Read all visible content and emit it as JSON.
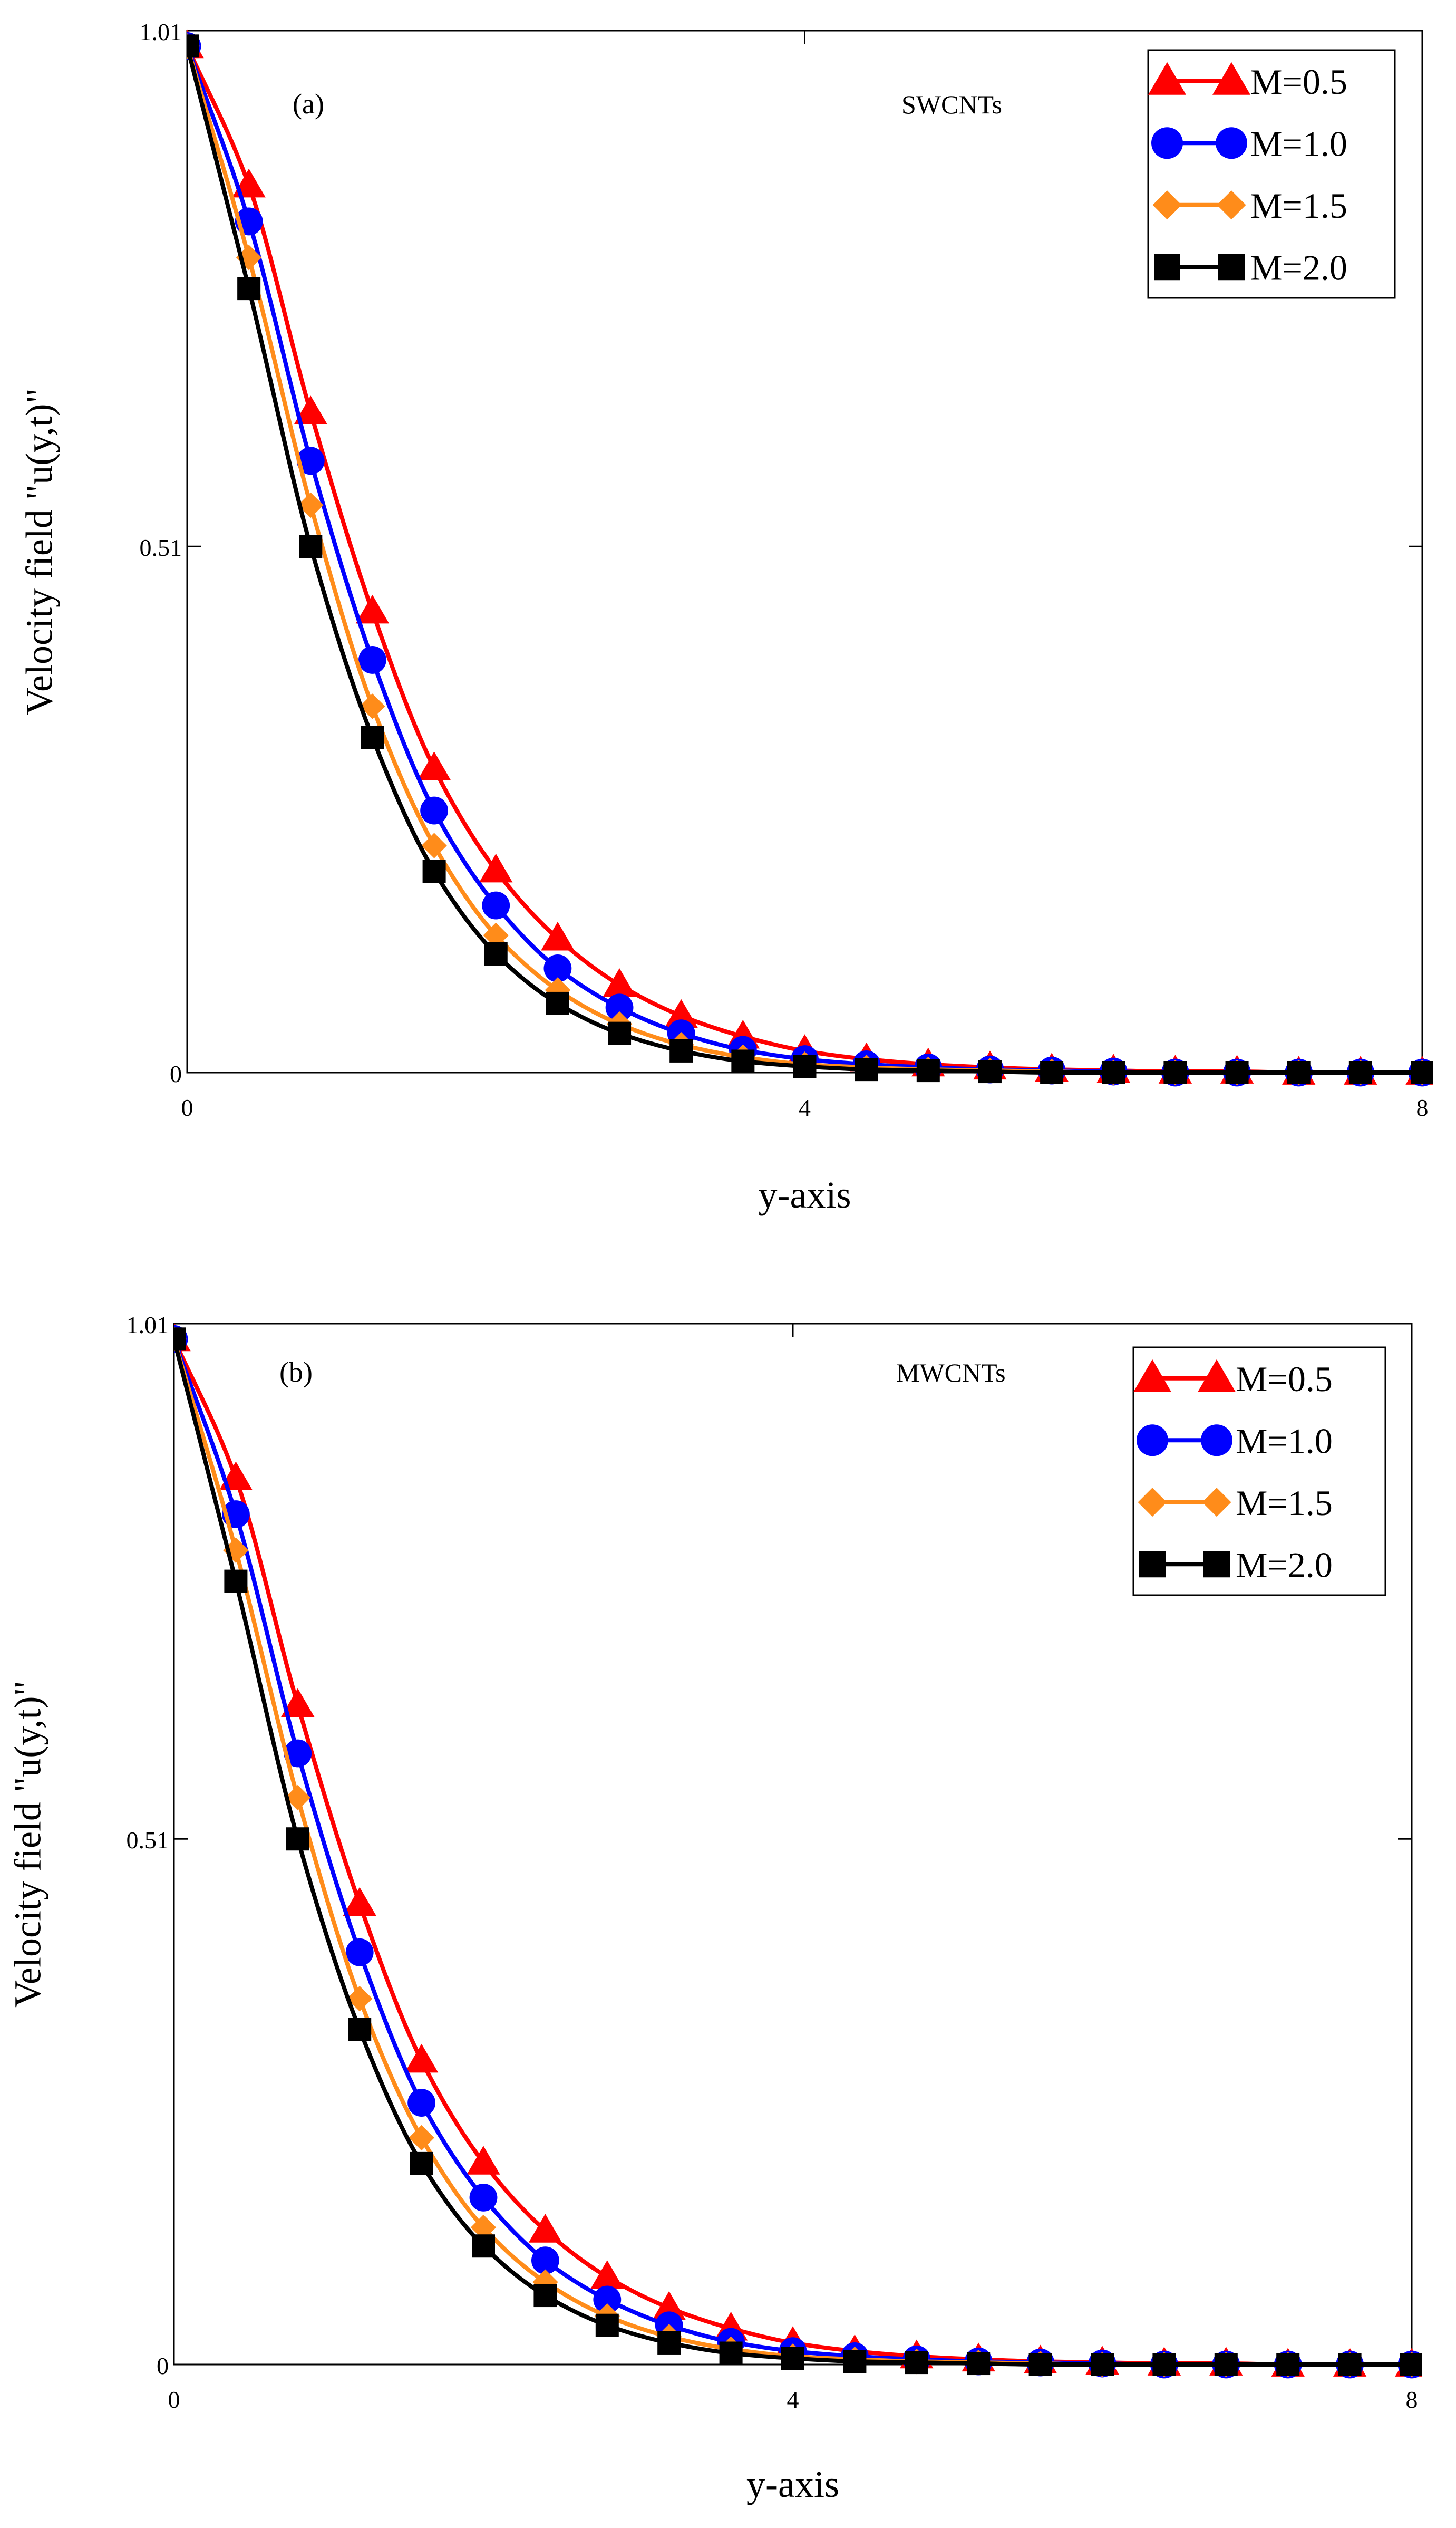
{
  "chart_data": [
    {
      "type": "line",
      "panel_label": "(a)",
      "annotation": "SWCNTs",
      "xlabel": "y-axis",
      "ylabel": "Velocity field \"u(y,t)\"",
      "xlim": [
        0,
        8
      ],
      "ylim": [
        0,
        1.01
      ],
      "x_ticks": [
        0,
        4,
        8
      ],
      "x_tick_labels": [
        "0",
        "4",
        "8"
      ],
      "y_ticks": [
        0,
        0.51,
        1.01
      ],
      "y_tick_labels": [
        "0",
        "0.51",
        "1.01"
      ],
      "grid": false,
      "legend_position": "top-right",
      "x": [
        0,
        0.4,
        0.8,
        1.2,
        1.6,
        2.0,
        2.4,
        2.8,
        3.2,
        3.6,
        4.0,
        4.4,
        4.8,
        5.2,
        5.6,
        6.0,
        6.4,
        6.8,
        7.2,
        7.6,
        8.0
      ],
      "series": [
        {
          "name": "M=0.5",
          "color": "#ff0000",
          "marker": "triangle",
          "values": [
            0.995,
            0.86,
            0.64,
            0.447,
            0.295,
            0.196,
            0.13,
            0.085,
            0.055,
            0.035,
            0.021,
            0.013,
            0.008,
            0.005,
            0.003,
            0.002,
            0.001,
            0.001,
            0.0,
            0.0,
            0.0
          ]
        },
        {
          "name": "M=1.0",
          "color": "#0000ff",
          "marker": "circle",
          "values": [
            0.995,
            0.825,
            0.593,
            0.4,
            0.254,
            0.162,
            0.101,
            0.063,
            0.038,
            0.022,
            0.013,
            0.008,
            0.005,
            0.003,
            0.002,
            0.001,
            0.0,
            0.0,
            0.0,
            0.0,
            0.0
          ]
        },
        {
          "name": "M=1.5",
          "color": "#ff8c1a",
          "marker": "diamond",
          "values": [
            0.995,
            0.79,
            0.55,
            0.355,
            0.22,
            0.133,
            0.08,
            0.047,
            0.027,
            0.015,
            0.008,
            0.005,
            0.003,
            0.002,
            0.001,
            0.0,
            0.0,
            0.0,
            0.0,
            0.0,
            0.0
          ]
        },
        {
          "name": "M=2.0",
          "color": "#000000",
          "marker": "square",
          "values": [
            0.995,
            0.76,
            0.51,
            0.325,
            0.195,
            0.115,
            0.067,
            0.038,
            0.021,
            0.011,
            0.006,
            0.003,
            0.002,
            0.001,
            0.0,
            0.0,
            0.0,
            0.0,
            0.0,
            0.0,
            0.0
          ]
        }
      ]
    },
    {
      "type": "line",
      "panel_label": "(b)",
      "annotation": "MWCNTs",
      "xlabel": "y-axis",
      "ylabel": "Velocity field \"u(y,t)\"",
      "xlim": [
        0,
        8
      ],
      "ylim": [
        0,
        1.01
      ],
      "x_ticks": [
        0,
        4,
        8
      ],
      "x_tick_labels": [
        "0",
        "4",
        "8"
      ],
      "y_ticks": [
        0,
        0.51,
        1.01
      ],
      "y_tick_labels": [
        "0",
        "0.51",
        "1.01"
      ],
      "grid": false,
      "legend_position": "top-right",
      "x": [
        0,
        0.4,
        0.8,
        1.2,
        1.6,
        2.0,
        2.4,
        2.8,
        3.2,
        3.6,
        4.0,
        4.4,
        4.8,
        5.2,
        5.6,
        6.0,
        6.4,
        6.8,
        7.2,
        7.6,
        8.0
      ],
      "series": [
        {
          "name": "M=0.5",
          "color": "#ff0000",
          "marker": "triangle",
          "values": [
            0.995,
            0.86,
            0.64,
            0.447,
            0.295,
            0.196,
            0.13,
            0.085,
            0.055,
            0.035,
            0.021,
            0.013,
            0.008,
            0.005,
            0.003,
            0.002,
            0.001,
            0.001,
            0.0,
            0.0,
            0.0
          ]
        },
        {
          "name": "M=1.0",
          "color": "#0000ff",
          "marker": "circle",
          "values": [
            0.995,
            0.825,
            0.593,
            0.4,
            0.254,
            0.162,
            0.101,
            0.063,
            0.038,
            0.022,
            0.013,
            0.008,
            0.005,
            0.003,
            0.002,
            0.001,
            0.0,
            0.0,
            0.0,
            0.0,
            0.0
          ]
        },
        {
          "name": "M=1.5",
          "color": "#ff8c1a",
          "marker": "diamond",
          "values": [
            0.995,
            0.79,
            0.55,
            0.355,
            0.22,
            0.133,
            0.08,
            0.047,
            0.027,
            0.015,
            0.008,
            0.005,
            0.003,
            0.002,
            0.001,
            0.0,
            0.0,
            0.0,
            0.0,
            0.0,
            0.0
          ]
        },
        {
          "name": "M=2.0",
          "color": "#000000",
          "marker": "square",
          "values": [
            0.995,
            0.76,
            0.51,
            0.325,
            0.195,
            0.115,
            0.067,
            0.038,
            0.021,
            0.011,
            0.006,
            0.003,
            0.002,
            0.001,
            0.0,
            0.0,
            0.0,
            0.0,
            0.0,
            0.0,
            0.0
          ]
        }
      ]
    }
  ]
}
